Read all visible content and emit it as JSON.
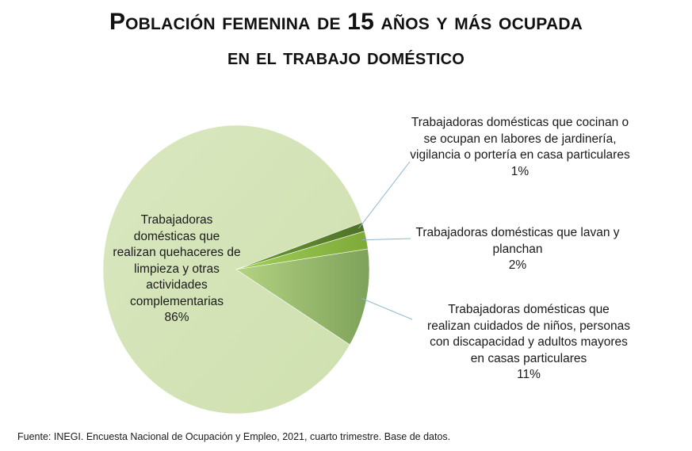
{
  "title_line1": "Población femenina de 15 años y más ocupada",
  "title_line2": "en el trabajo doméstico",
  "chart_data": {
    "type": "pie",
    "title": "Población femenina de 15 años y más ocupada en el trabajo doméstico",
    "slices": [
      {
        "label": "Trabajadoras domésticas que realizan quehaceres de limpieza y otras actividades complementarias",
        "value": 86,
        "display": "86%",
        "color": "#d6e5b9"
      },
      {
        "label": "Trabajadoras domésticas que cocinan o se ocupan en labores de jardinería, vigilancia o portería en casa particulares",
        "value": 1,
        "display": "1%",
        "color": "#5a7f2e"
      },
      {
        "label": "Trabajadoras domésticas que lavan y planchan",
        "value": 2,
        "display": "2%",
        "color": "#8bb84a"
      },
      {
        "label": "Trabajadoras domésticas que realizan cuidados de niños, personas con discapacidad y adultos mayores en casas particulares",
        "value": 11,
        "display": "11%",
        "color": "#a3c46d"
      }
    ]
  },
  "labels": {
    "limpieza": {
      "text": "Trabajadoras domésticas que realizan quehaceres de limpieza y otras actividades complementarias",
      "pct": "86%"
    },
    "cocinan": {
      "text": "Trabajadoras domésticas que cocinan o se ocupan en labores de jardinería, vigilancia o portería en casa particulares",
      "pct": "1%"
    },
    "lavan": {
      "text": "Trabajadoras domésticas que lavan y planchan",
      "pct": "2%"
    },
    "cuidados": {
      "text": "Trabajadoras domésticas que realizan cuidados de niños, personas con discapacidad y adultos mayores en casas particulares",
      "pct": "11%"
    }
  },
  "source": "Fuente: INEGI. Encuesta Nacional de Ocupación y Empleo, 2021, cuarto trimestre. Base de datos."
}
